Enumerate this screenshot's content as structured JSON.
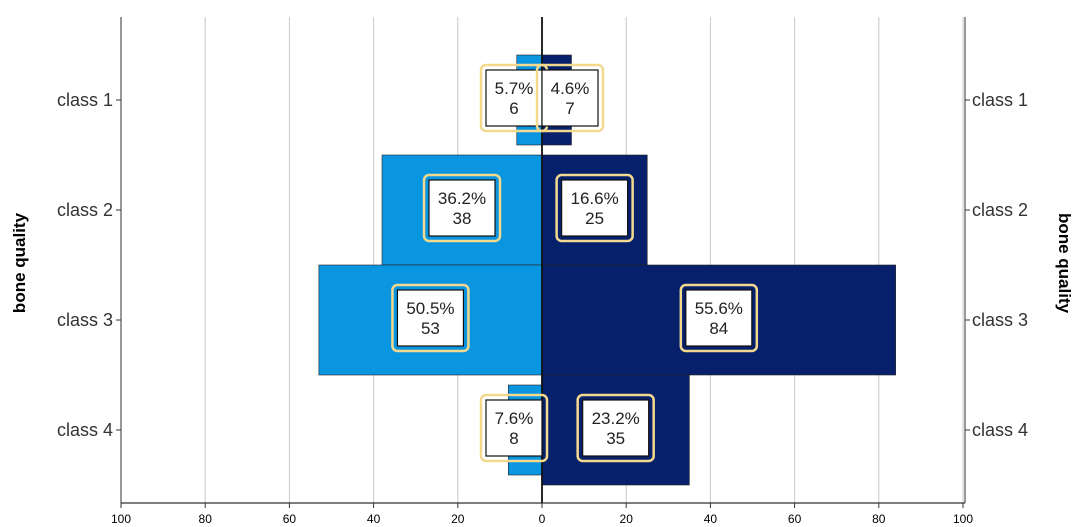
{
  "chart_data": {
    "type": "bar",
    "orientation": "horizontal-pyramid",
    "categories": [
      "class 1",
      "class 2",
      "class 3",
      "class 4"
    ],
    "series": [
      {
        "side": "left",
        "color": "#0a95e0",
        "values": [
          6,
          38,
          53,
          8
        ],
        "percent_labels": [
          "5.7%",
          "36.2%",
          "50.5%",
          "7.6%"
        ],
        "count_labels": [
          "6",
          "38",
          "53",
          "8"
        ]
      },
      {
        "side": "right",
        "color": "#06206b",
        "values": [
          7,
          25,
          84,
          35
        ],
        "percent_labels": [
          "4.6%",
          "16.6%",
          "55.6%",
          "23.2%"
        ],
        "count_labels": [
          "7",
          "25",
          "84",
          "35"
        ]
      }
    ],
    "ylabel_left": "bone quality",
    "ylabel_right": "bone quality",
    "xlim": [
      0,
      100
    ],
    "xticks_left": [
      "100",
      "80",
      "60",
      "40",
      "20",
      "0"
    ],
    "xticks_right": [
      "0",
      "20",
      "40",
      "60",
      "80",
      "100"
    ],
    "grid": true,
    "label_box_border_color": "#f2d98e"
  }
}
